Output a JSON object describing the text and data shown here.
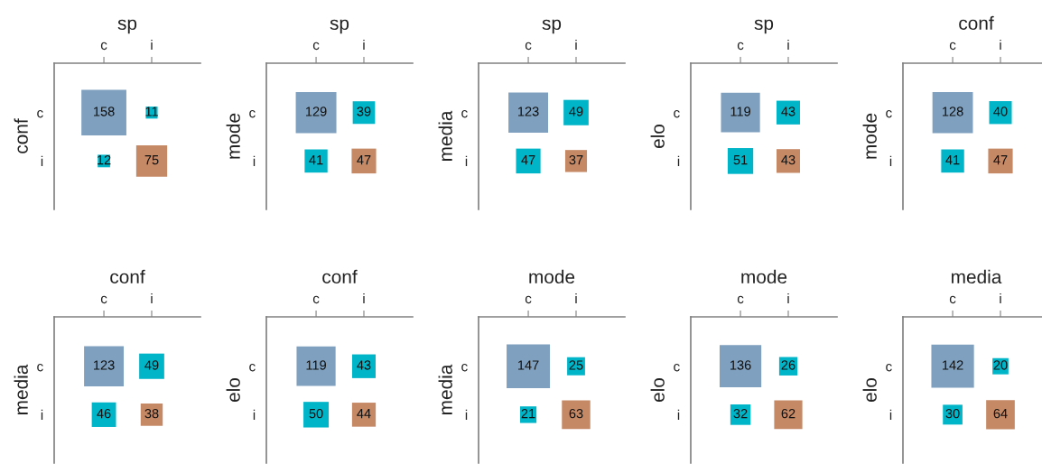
{
  "chart_data": [
    {
      "type": "heatmap",
      "xlabel": "sp",
      "ylabel": "conf",
      "categories": [
        "c",
        "i"
      ],
      "y_categories": [
        "c",
        "i"
      ],
      "cells": [
        [
          158,
          11
        ],
        [
          12,
          75
        ]
      ],
      "colors": [
        [
          "#7fa0bf",
          "#00b5c8"
        ],
        [
          "#00b5c8",
          "#c68966"
        ]
      ],
      "data_labels": true
    },
    {
      "type": "heatmap",
      "xlabel": "sp",
      "ylabel": "mode",
      "categories": [
        "c",
        "i"
      ],
      "y_categories": [
        "c",
        "i"
      ],
      "cells": [
        [
          129,
          39
        ],
        [
          41,
          47
        ]
      ],
      "colors": [
        [
          "#7fa0bf",
          "#00b5c8"
        ],
        [
          "#00b5c8",
          "#c68966"
        ]
      ],
      "data_labels": true
    },
    {
      "type": "heatmap",
      "xlabel": "sp",
      "ylabel": "media",
      "categories": [
        "c",
        "i"
      ],
      "y_categories": [
        "c",
        "i"
      ],
      "cells": [
        [
          123,
          49
        ],
        [
          47,
          37
        ]
      ],
      "colors": [
        [
          "#7fa0bf",
          "#00b5c8"
        ],
        [
          "#00b5c8",
          "#c68966"
        ]
      ],
      "data_labels": true
    },
    {
      "type": "heatmap",
      "xlabel": "sp",
      "ylabel": "elo",
      "categories": [
        "c",
        "i"
      ],
      "y_categories": [
        "c",
        "i"
      ],
      "cells": [
        [
          119,
          43
        ],
        [
          51,
          43
        ]
      ],
      "colors": [
        [
          "#7fa0bf",
          "#00b5c8"
        ],
        [
          "#00b5c8",
          "#c68966"
        ]
      ],
      "data_labels": true
    },
    {
      "type": "heatmap",
      "xlabel": "conf",
      "ylabel": "mode",
      "categories": [
        "c",
        "i"
      ],
      "y_categories": [
        "c",
        "i"
      ],
      "cells": [
        [
          128,
          40
        ],
        [
          41,
          47
        ]
      ],
      "colors": [
        [
          "#7fa0bf",
          "#00b5c8"
        ],
        [
          "#00b5c8",
          "#c68966"
        ]
      ],
      "data_labels": true
    },
    {
      "type": "heatmap",
      "xlabel": "conf",
      "ylabel": "media",
      "categories": [
        "c",
        "i"
      ],
      "y_categories": [
        "c",
        "i"
      ],
      "cells": [
        [
          123,
          49
        ],
        [
          46,
          38
        ]
      ],
      "colors": [
        [
          "#7fa0bf",
          "#00b5c8"
        ],
        [
          "#00b5c8",
          "#c68966"
        ]
      ],
      "data_labels": true
    },
    {
      "type": "heatmap",
      "xlabel": "conf",
      "ylabel": "elo",
      "categories": [
        "c",
        "i"
      ],
      "y_categories": [
        "c",
        "i"
      ],
      "cells": [
        [
          119,
          43
        ],
        [
          50,
          44
        ]
      ],
      "colors": [
        [
          "#7fa0bf",
          "#00b5c8"
        ],
        [
          "#00b5c8",
          "#c68966"
        ]
      ],
      "data_labels": true
    },
    {
      "type": "heatmap",
      "xlabel": "mode",
      "ylabel": "media",
      "categories": [
        "c",
        "i"
      ],
      "y_categories": [
        "c",
        "i"
      ],
      "cells": [
        [
          147,
          25
        ],
        [
          21,
          63
        ]
      ],
      "colors": [
        [
          "#7fa0bf",
          "#00b5c8"
        ],
        [
          "#00b5c8",
          "#c68966"
        ]
      ],
      "data_labels": true
    },
    {
      "type": "heatmap",
      "xlabel": "mode",
      "ylabel": "elo",
      "categories": [
        "c",
        "i"
      ],
      "y_categories": [
        "c",
        "i"
      ],
      "cells": [
        [
          136,
          26
        ],
        [
          32,
          62
        ]
      ],
      "colors": [
        [
          "#7fa0bf",
          "#00b5c8"
        ],
        [
          "#00b5c8",
          "#c68966"
        ]
      ],
      "data_labels": true
    },
    {
      "type": "heatmap",
      "xlabel": "media",
      "ylabel": "elo",
      "categories": [
        "c",
        "i"
      ],
      "y_categories": [
        "c",
        "i"
      ],
      "cells": [
        [
          142,
          20
        ],
        [
          30,
          64
        ]
      ],
      "colors": [
        [
          "#7fa0bf",
          "#00b5c8"
        ],
        [
          "#00b5c8",
          "#c68966"
        ]
      ],
      "data_labels": true
    }
  ]
}
